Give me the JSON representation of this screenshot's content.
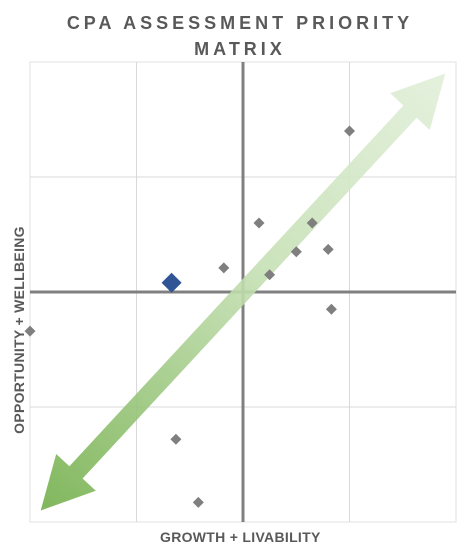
{
  "chart_data": {
    "type": "scatter",
    "title": "CPA ASSESSMENT PRIORITY MATRIX",
    "xlabel": "GROWTH + LIVABILITY",
    "ylabel": "OPPORTUNITY + WELLBEING",
    "xlim": [
      -2,
      2
    ],
    "ylim": [
      -2,
      2
    ],
    "grid": true,
    "gridlines": [
      -1,
      0,
      1
    ],
    "quadrant_axes": true,
    "tick_labels_shown": false,
    "colors": {
      "points": "#7f7f7f",
      "highlight": "#2f5597",
      "gridline": "#d9d9d9",
      "axis": "#808080",
      "arrow_light": "#e2efda",
      "arrow_dark": "#70ad47",
      "text": "#595959"
    },
    "arrow": {
      "from": [
        1.9,
        1.9
      ],
      "to": [
        -1.9,
        -1.9
      ],
      "style": "double-headed gradient"
    },
    "highlight": {
      "x": -0.67,
      "y": 0.08
    },
    "points": [
      {
        "x": 1.0,
        "y": 1.4
      },
      {
        "x": 0.15,
        "y": 0.6
      },
      {
        "x": 0.65,
        "y": 0.6
      },
      {
        "x": 0.5,
        "y": 0.35
      },
      {
        "x": 0.8,
        "y": 0.37
      },
      {
        "x": -0.18,
        "y": 0.21
      },
      {
        "x": 0.25,
        "y": 0.15
      },
      {
        "x": 0.83,
        "y": -0.15
      },
      {
        "x": -2.0,
        "y": -0.34
      },
      {
        "x": -0.63,
        "y": -1.28
      },
      {
        "x": -0.42,
        "y": -1.83
      }
    ]
  }
}
